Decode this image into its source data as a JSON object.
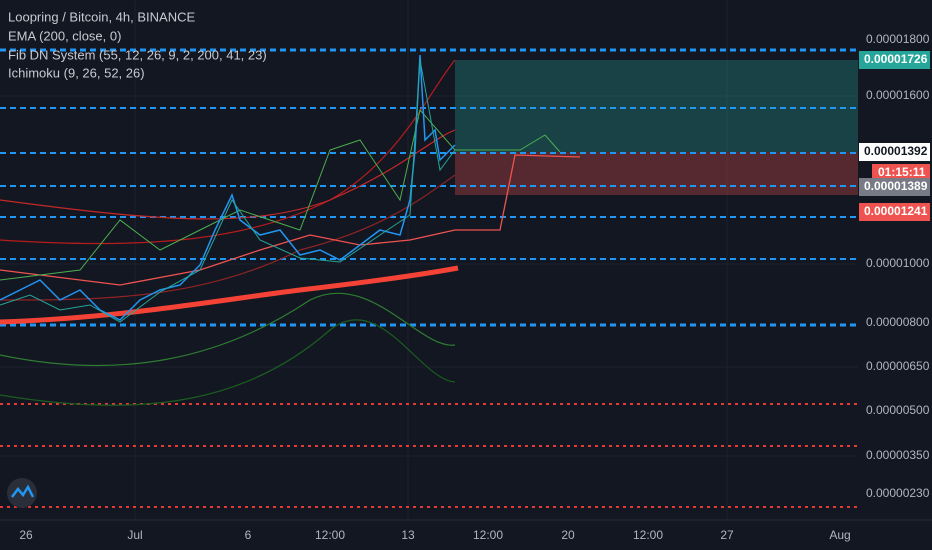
{
  "header": {
    "symbol": "Loopring / Bitcoin, 4h, BINANCE",
    "indicators": [
      "EMA (200, close, 0)",
      "Fib DN System (55, 12, 26, 9, 2, 200, 41, 23)",
      "Ichimoku (9, 26, 52, 26)"
    ]
  },
  "price_axis": {
    "labels": [
      "0.00001800",
      "0.00001600",
      "0.00001000",
      "0.00000800",
      "0.00000650",
      "0.00000500",
      "0.00000350",
      "0.00000230"
    ],
    "badges": [
      "0.00001726",
      "0.00001392",
      "01:15:11",
      "0.00001389",
      "0.00001241"
    ]
  },
  "time_axis": {
    "labels": [
      "26",
      "Jul",
      "6",
      "12:00",
      "13",
      "12:00",
      "20",
      "12:00",
      "27",
      "Aug"
    ]
  }
}
